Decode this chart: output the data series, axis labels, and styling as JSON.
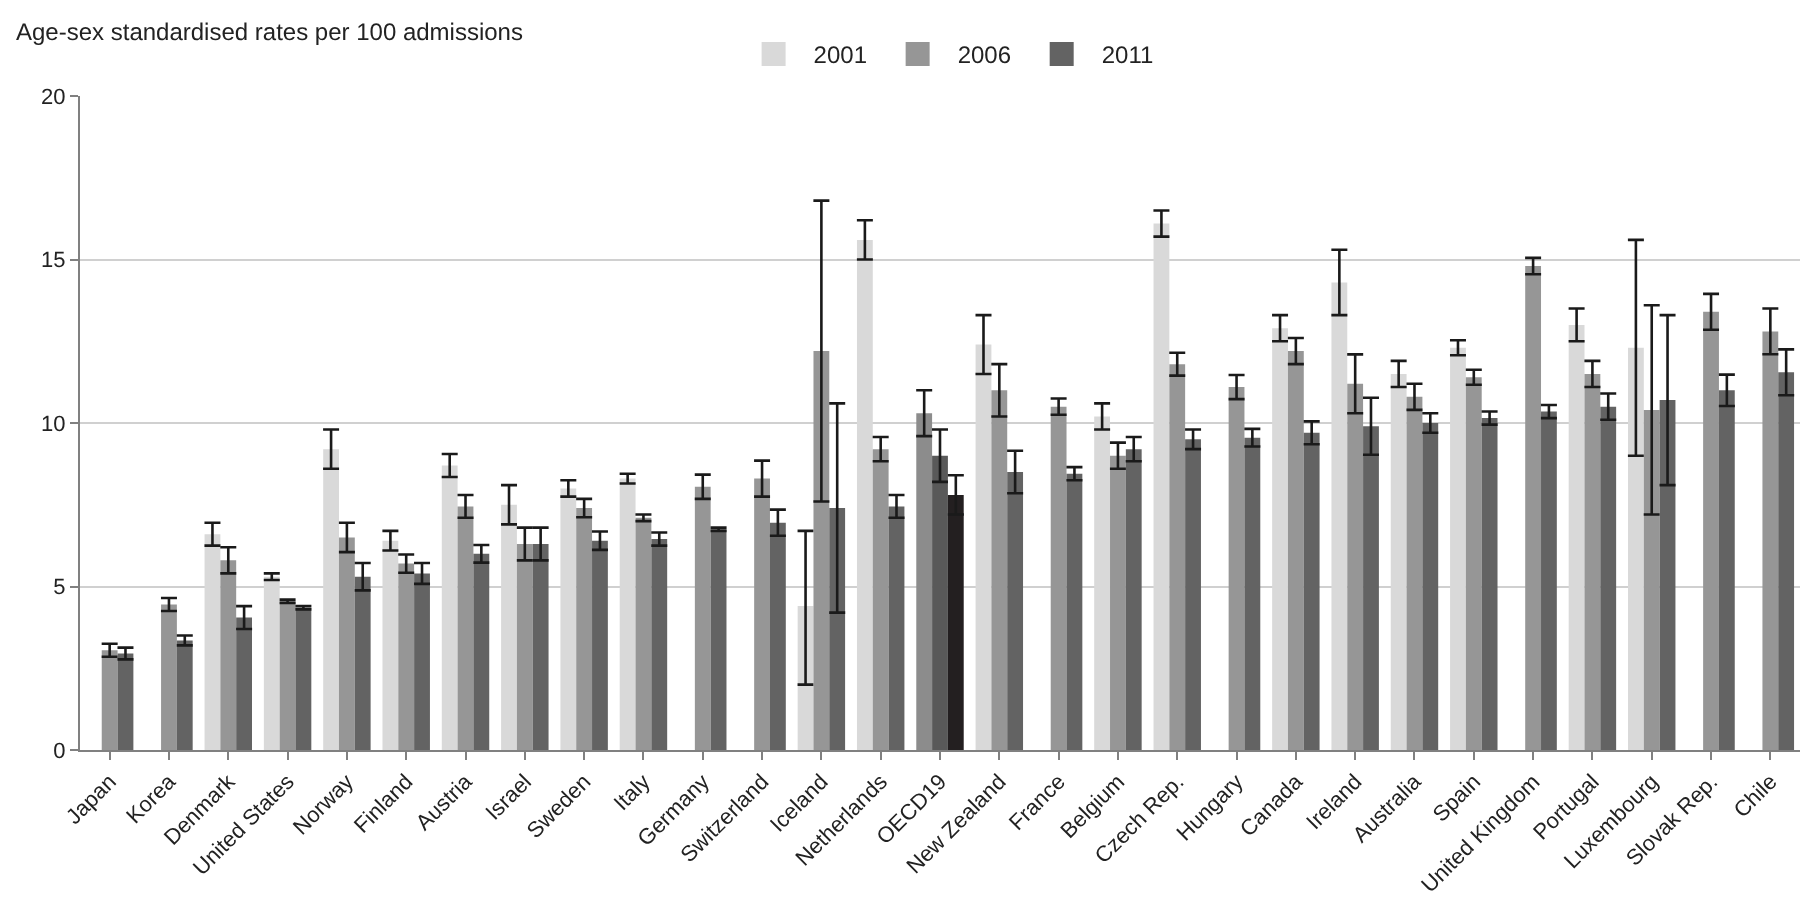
{
  "chart_data": {
    "type": "bar",
    "ylabel": "Age-sex standardised rates per 100 admissions",
    "categories": [
      "Japan",
      "Korea",
      "Denmark",
      "United States",
      "Norway",
      "Finland",
      "Austria",
      "Israel",
      "Sweden",
      "Italy",
      "Germany",
      "Switzerland",
      "Iceland",
      "Netherlands",
      "OECD19",
      "New Zealand",
      "France",
      "Belgium",
      "Czech Rep.",
      "Hungary",
      "Canada",
      "Ireland",
      "Australia",
      "Spain",
      "United Kingdom",
      "Portugal",
      "Luxembourg",
      "Slovak Rep.",
      "Chile"
    ],
    "series": [
      {
        "name": "2001",
        "color": "#d9d9d9",
        "colors": [
          null,
          null,
          null,
          null,
          null,
          null,
          null,
          null,
          null,
          null,
          null,
          null,
          null,
          null,
          "#8c8c8c",
          null,
          null,
          null,
          null,
          null,
          null,
          null,
          null,
          null,
          null,
          null,
          null,
          null,
          null
        ],
        "values": [
          null,
          null,
          6.6,
          5.3,
          9.2,
          6.4,
          8.7,
          7.5,
          8.0,
          8.3,
          null,
          null,
          4.4,
          15.6,
          10.3,
          12.4,
          null,
          10.2,
          16.1,
          null,
          12.9,
          14.3,
          11.5,
          12.3,
          null,
          13.0,
          12.3,
          null,
          null
        ],
        "errors": [
          null,
          null,
          0.35,
          0.1,
          0.6,
          0.3,
          0.35,
          0.6,
          0.25,
          0.15,
          null,
          null,
          [
            2.0,
            6.7
          ],
          0.6,
          0.7,
          0.9,
          null,
          0.4,
          0.4,
          null,
          0.4,
          1.0,
          0.4,
          0.23,
          null,
          0.5,
          [
            9.0,
            15.6
          ],
          null,
          null
        ]
      },
      {
        "name": "2006",
        "color": "#969696",
        "colors": [
          null,
          null,
          null,
          null,
          null,
          null,
          null,
          null,
          null,
          null,
          null,
          null,
          null,
          null,
          "#595959",
          null,
          null,
          null,
          null,
          null,
          null,
          null,
          null,
          null,
          null,
          null,
          null,
          null,
          null
        ],
        "values": [
          3.05,
          4.45,
          5.8,
          4.55,
          6.5,
          5.7,
          7.45,
          6.3,
          7.4,
          7.1,
          8.05,
          8.3,
          12.2,
          9.2,
          9.0,
          11.0,
          10.5,
          9.0,
          11.8,
          11.1,
          12.2,
          11.2,
          10.8,
          11.4,
          14.8,
          11.5,
          10.4,
          13.4,
          12.8
        ],
        "errors": [
          0.2,
          0.2,
          0.4,
          0.05,
          0.45,
          0.28,
          0.35,
          0.5,
          0.28,
          0.1,
          0.37,
          0.55,
          [
            7.6,
            16.8
          ],
          0.37,
          0.8,
          0.8,
          0.25,
          0.4,
          0.35,
          0.37,
          0.4,
          0.9,
          0.4,
          0.23,
          0.25,
          0.4,
          [
            7.2,
            13.6
          ],
          0.55,
          0.7
        ]
      },
      {
        "name": "2011",
        "color": "#636363",
        "colors": [
          null,
          null,
          null,
          null,
          null,
          null,
          null,
          null,
          null,
          null,
          null,
          null,
          null,
          null,
          "#231f20",
          null,
          null,
          null,
          null,
          null,
          null,
          null,
          null,
          null,
          null,
          null,
          null,
          null,
          null
        ],
        "values": [
          2.95,
          3.35,
          4.05,
          4.35,
          5.3,
          5.4,
          6.0,
          6.3,
          6.4,
          6.45,
          6.75,
          6.95,
          7.4,
          7.45,
          7.8,
          8.5,
          8.45,
          9.2,
          9.5,
          9.55,
          9.7,
          9.9,
          10.0,
          10.15,
          10.35,
          10.5,
          10.7,
          11.0,
          11.55
        ],
        "errors": [
          0.18,
          0.15,
          0.35,
          0.05,
          0.42,
          0.32,
          0.27,
          0.5,
          0.28,
          0.2,
          0.05,
          0.4,
          [
            4.2,
            10.6
          ],
          0.35,
          0.6,
          0.65,
          0.2,
          0.37,
          0.3,
          0.27,
          0.35,
          0.87,
          0.3,
          0.2,
          0.2,
          0.4,
          [
            8.1,
            13.3
          ],
          0.48,
          0.7
        ]
      }
    ],
    "ylim": [
      0,
      20
    ],
    "yticks": [
      0,
      5,
      10,
      15,
      20
    ],
    "grid": "y",
    "legend": "top"
  }
}
